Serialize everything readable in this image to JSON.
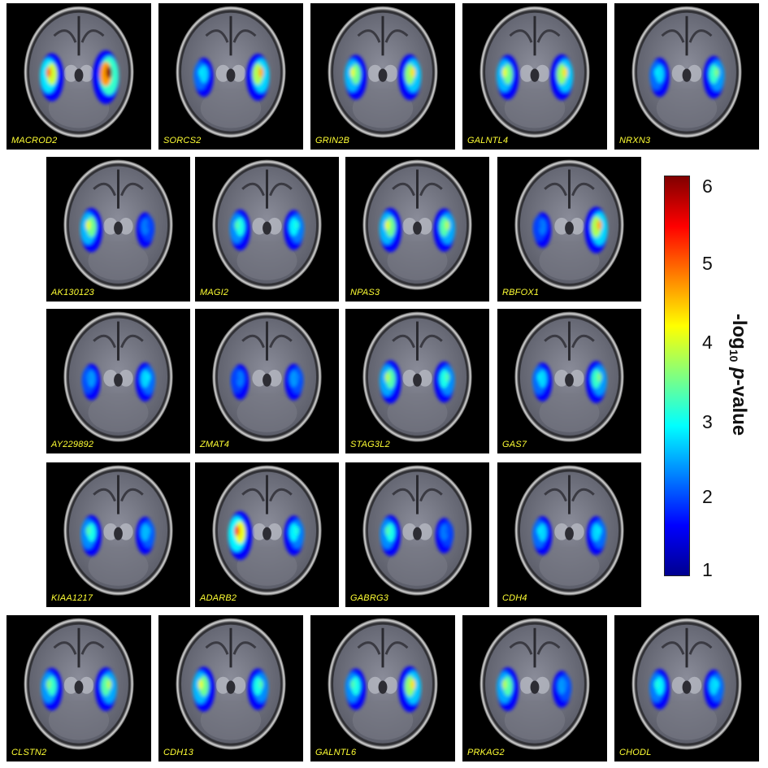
{
  "colors": {
    "panel_background": "#000000",
    "label_color": "#ffff33",
    "colormap": [
      "#00008f",
      "#0000ff",
      "#0080ff",
      "#00ffff",
      "#80ff80",
      "#ffff00",
      "#ff8000",
      "#ff0000",
      "#800000"
    ]
  },
  "colorbar": {
    "ticks": [
      "6",
      "5",
      "4",
      "3",
      "2",
      "1"
    ],
    "title_main": "-log",
    "title_sub": "10",
    "title_p": "p",
    "title_rest": "-value"
  },
  "rows": [
    {
      "panels": [
        {
          "gene": "MACROD2",
          "blobs": [
            {
              "side": "left",
              "strength": 0.75
            },
            {
              "side": "right",
              "strength": 1.0
            }
          ]
        },
        {
          "gene": "SORCS2",
          "blobs": [
            {
              "side": "left",
              "strength": 0.35
            },
            {
              "side": "right",
              "strength": 0.7
            }
          ]
        },
        {
          "gene": "GRIN2B",
          "blobs": [
            {
              "side": "left",
              "strength": 0.6
            },
            {
              "side": "right",
              "strength": 0.65
            }
          ]
        },
        {
          "gene": "GALNTL4",
          "blobs": [
            {
              "side": "left",
              "strength": 0.6
            },
            {
              "side": "right",
              "strength": 0.65
            }
          ]
        },
        {
          "gene": "NRXN3",
          "blobs": [
            {
              "side": "left",
              "strength": 0.35
            },
            {
              "side": "right",
              "strength": 0.5
            }
          ]
        }
      ]
    },
    {
      "panels": [
        {
          "gene": "AK130123",
          "blobs": [
            {
              "side": "left",
              "strength": 0.6
            },
            {
              "side": "right",
              "strength": 0.2
            }
          ]
        },
        {
          "gene": "MAGI2",
          "blobs": [
            {
              "side": "left",
              "strength": 0.45
            },
            {
              "side": "right",
              "strength": 0.4
            }
          ]
        },
        {
          "gene": "NPAS3",
          "blobs": [
            {
              "side": "left",
              "strength": 0.6
            },
            {
              "side": "right",
              "strength": 0.55
            }
          ]
        },
        {
          "gene": "RBFOX1",
          "blobs": [
            {
              "side": "left",
              "strength": 0.2
            },
            {
              "side": "right",
              "strength": 0.7
            }
          ]
        }
      ]
    },
    {
      "panels": [
        {
          "gene": "AY229892",
          "blobs": [
            {
              "side": "left",
              "strength": 0.25
            },
            {
              "side": "right",
              "strength": 0.35
            }
          ]
        },
        {
          "gene": "ZMAT4",
          "blobs": [
            {
              "side": "left",
              "strength": 0.2
            },
            {
              "side": "right",
              "strength": 0.25
            }
          ]
        },
        {
          "gene": "STAG3L2",
          "blobs": [
            {
              "side": "left",
              "strength": 0.55
            },
            {
              "side": "right",
              "strength": 0.45
            }
          ]
        },
        {
          "gene": "GAS7",
          "blobs": [
            {
              "side": "left",
              "strength": 0.35
            },
            {
              "side": "right",
              "strength": 0.5
            }
          ]
        }
      ]
    },
    {
      "panels": [
        {
          "gene": "KIAA1217",
          "blobs": [
            {
              "side": "left",
              "strength": 0.45
            },
            {
              "side": "right",
              "strength": 0.3
            }
          ]
        },
        {
          "gene": "ADARB2",
          "blobs": [
            {
              "side": "left",
              "strength": 0.8
            },
            {
              "side": "right",
              "strength": 0.4
            }
          ]
        },
        {
          "gene": "GABRG3",
          "blobs": [
            {
              "side": "left",
              "strength": 0.45
            },
            {
              "side": "right",
              "strength": 0.2
            }
          ]
        },
        {
          "gene": "CDH4",
          "blobs": [
            {
              "side": "left",
              "strength": 0.35
            },
            {
              "side": "right",
              "strength": 0.35
            }
          ]
        }
      ]
    },
    {
      "panels": [
        {
          "gene": "CLSTN2",
          "blobs": [
            {
              "side": "left",
              "strength": 0.5
            },
            {
              "side": "right",
              "strength": 0.55
            }
          ]
        },
        {
          "gene": "CDH13",
          "blobs": [
            {
              "side": "left",
              "strength": 0.6
            },
            {
              "side": "right",
              "strength": 0.45
            }
          ]
        },
        {
          "gene": "GALNTL6",
          "blobs": [
            {
              "side": "left",
              "strength": 0.45
            },
            {
              "side": "right",
              "strength": 0.65
            }
          ]
        },
        {
          "gene": "PRKAG2",
          "blobs": [
            {
              "side": "left",
              "strength": 0.55
            },
            {
              "side": "right",
              "strength": 0.25
            }
          ]
        },
        {
          "gene": "CHODL",
          "blobs": [
            {
              "side": "left",
              "strength": 0.4
            },
            {
              "side": "right",
              "strength": 0.35
            }
          ]
        }
      ]
    }
  ]
}
